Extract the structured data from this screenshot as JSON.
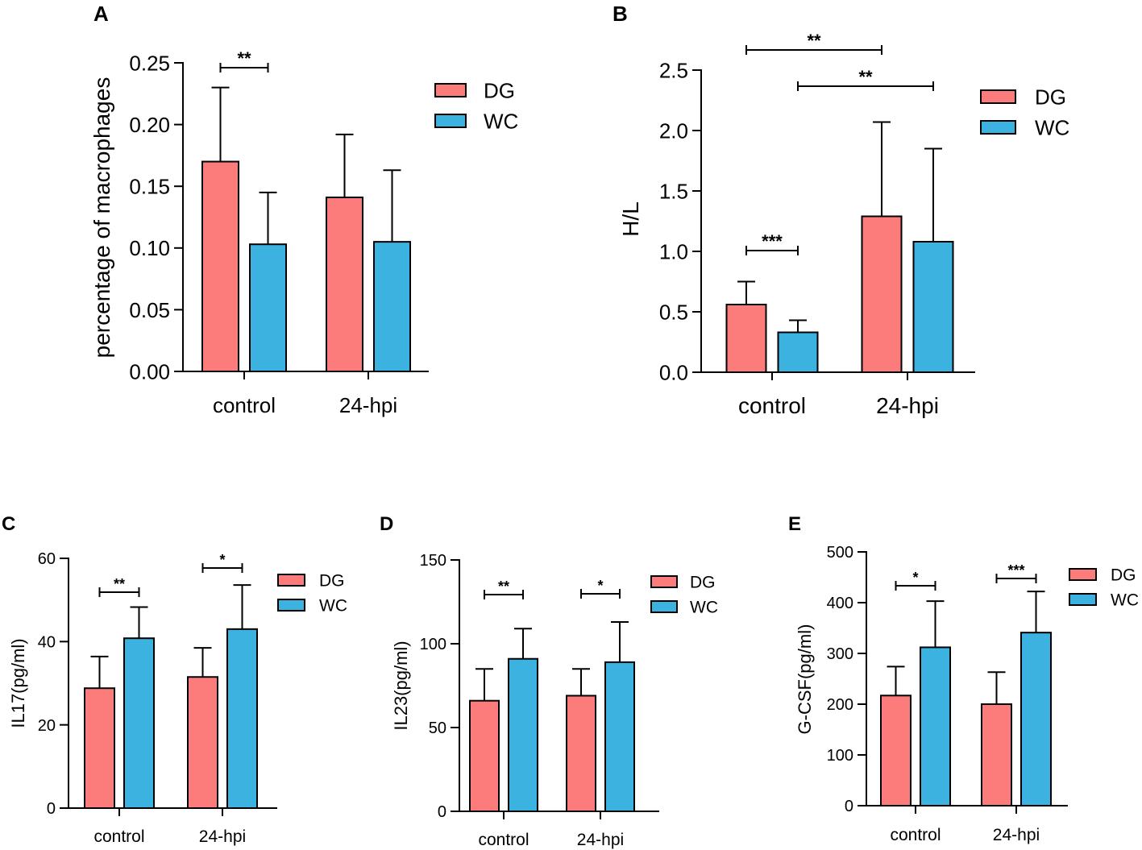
{
  "colors": {
    "DG": "#fc7c7c",
    "WC": "#3bb2e0"
  },
  "chart_data": [
    {
      "panel": "A",
      "type": "bar",
      "ylabel": "percentage of macrophages",
      "categories": [
        "control",
        "24-hpi"
      ],
      "ylim": [
        0,
        0.25
      ],
      "yticks": [
        "0.00",
        "0.05",
        "0.10",
        "0.15",
        "0.20",
        "0.25"
      ],
      "ytick_values": [
        0,
        0.05,
        0.1,
        0.15,
        0.2,
        0.25
      ],
      "series": [
        {
          "name": "DG",
          "values": [
            0.17,
            0.141
          ],
          "errors": [
            0.06,
            0.051
          ]
        },
        {
          "name": "WC",
          "values": [
            0.103,
            0.105
          ],
          "errors": [
            0.042,
            0.058
          ]
        }
      ],
      "significance": [
        {
          "label": "**",
          "from": [
            0,
            0
          ],
          "to": [
            0,
            1
          ]
        }
      ],
      "legend": [
        "DG",
        "WC"
      ]
    },
    {
      "panel": "B",
      "type": "bar",
      "ylabel": "H/L",
      "categories": [
        "control",
        "24-hpi"
      ],
      "ylim": [
        0,
        2.5
      ],
      "yticks": [
        "0.0",
        "0.5",
        "1.0",
        "1.5",
        "2.0",
        "2.5"
      ],
      "ytick_values": [
        0,
        0.5,
        1.0,
        1.5,
        2.0,
        2.5
      ],
      "series": [
        {
          "name": "DG",
          "values": [
            0.56,
            1.29
          ],
          "errors": [
            0.19,
            0.78
          ]
        },
        {
          "name": "WC",
          "values": [
            0.33,
            1.08
          ],
          "errors": [
            0.1,
            0.77
          ]
        }
      ],
      "significance": [
        {
          "label": "***",
          "from": [
            0,
            0
          ],
          "to": [
            0,
            1
          ]
        },
        {
          "label": "**",
          "from": [
            0,
            0
          ],
          "to": [
            1,
            0
          ]
        },
        {
          "label": "**",
          "from": [
            0,
            1
          ],
          "to": [
            1,
            1
          ]
        }
      ],
      "legend": [
        "DG",
        "WC"
      ]
    },
    {
      "panel": "C",
      "type": "bar",
      "ylabel": "IL17(pg/ml)",
      "categories": [
        "control",
        "24-hpi"
      ],
      "ylim": [
        0,
        60
      ],
      "yticks": [
        "0",
        "20",
        "40",
        "60"
      ],
      "ytick_values": [
        0,
        20,
        40,
        60
      ],
      "series": [
        {
          "name": "DG",
          "values": [
            28.8,
            31.5
          ],
          "errors": [
            7.6,
            7.0
          ]
        },
        {
          "name": "WC",
          "values": [
            40.8,
            43.0
          ],
          "errors": [
            7.5,
            10.6
          ]
        }
      ],
      "significance": [
        {
          "label": "**",
          "from": [
            0,
            0
          ],
          "to": [
            0,
            1
          ]
        },
        {
          "label": "*",
          "from": [
            1,
            0
          ],
          "to": [
            1,
            1
          ]
        }
      ],
      "legend": [
        "DG",
        "WC"
      ]
    },
    {
      "panel": "D",
      "type": "bar",
      "ylabel": "IL23(pg/ml)",
      "categories": [
        "control",
        "24-hpi"
      ],
      "ylim": [
        0,
        150
      ],
      "yticks": [
        "0",
        "50",
        "100",
        "150"
      ],
      "ytick_values": [
        0,
        50,
        100,
        150
      ],
      "series": [
        {
          "name": "DG",
          "values": [
            66,
            69
          ],
          "errors": [
            19,
            16
          ]
        },
        {
          "name": "WC",
          "values": [
            91,
            89
          ],
          "errors": [
            18,
            24
          ]
        }
      ],
      "significance": [
        {
          "label": "**",
          "from": [
            0,
            0
          ],
          "to": [
            0,
            1
          ]
        },
        {
          "label": "*",
          "from": [
            1,
            0
          ],
          "to": [
            1,
            1
          ]
        }
      ],
      "legend": [
        "DG",
        "WC"
      ]
    },
    {
      "panel": "E",
      "type": "bar",
      "ylabel": "G-CSF(pg/ml)",
      "categories": [
        "control",
        "24-hpi"
      ],
      "ylim": [
        0,
        500
      ],
      "yticks": [
        "0",
        "100",
        "200",
        "300",
        "400",
        "500"
      ],
      "ytick_values": [
        0,
        100,
        200,
        300,
        400,
        500
      ],
      "series": [
        {
          "name": "DG",
          "values": [
            217,
            200
          ],
          "errors": [
            57,
            63
          ]
        },
        {
          "name": "WC",
          "values": [
            312,
            341
          ],
          "errors": [
            91,
            81
          ]
        }
      ],
      "significance": [
        {
          "label": "*",
          "from": [
            0,
            0
          ],
          "to": [
            0,
            1
          ]
        },
        {
          "label": "***",
          "from": [
            1,
            0
          ],
          "to": [
            1,
            1
          ]
        }
      ],
      "legend": [
        "DG",
        "WC"
      ]
    }
  ]
}
